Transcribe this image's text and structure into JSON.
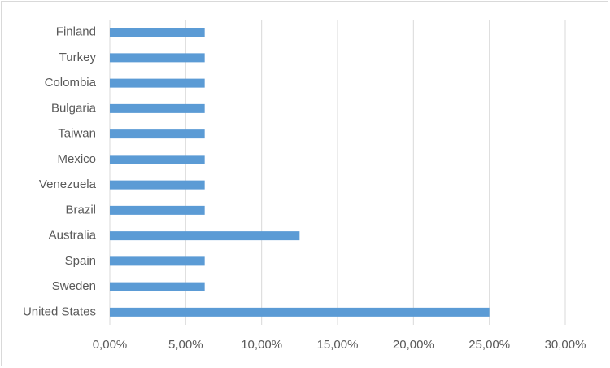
{
  "chart_data": {
    "type": "barh",
    "categories": [
      "Finland",
      "Turkey",
      "Colombia",
      "Bulgaria",
      "Taiwan",
      "Mexico",
      "Venezuela",
      "Brazil",
      "Australia",
      "Spain",
      "Sweden",
      "United States"
    ],
    "values": [
      6.25,
      6.25,
      6.25,
      6.25,
      6.25,
      6.25,
      6.25,
      6.25,
      12.5,
      6.25,
      6.25,
      25
    ],
    "color": "#5b9bd5",
    "xlim": [
      0,
      30
    ],
    "xticks": [
      {
        "value": 0,
        "label": "0,00%"
      },
      {
        "value": 5,
        "label": "5,00%"
      },
      {
        "value": 10,
        "label": "10,00%"
      },
      {
        "value": 15,
        "label": "15,00%"
      },
      {
        "value": 20,
        "label": "20,00%"
      },
      {
        "value": 25,
        "label": "25,00%"
      },
      {
        "value": 30,
        "label": "30,00%"
      }
    ],
    "grid": true
  }
}
